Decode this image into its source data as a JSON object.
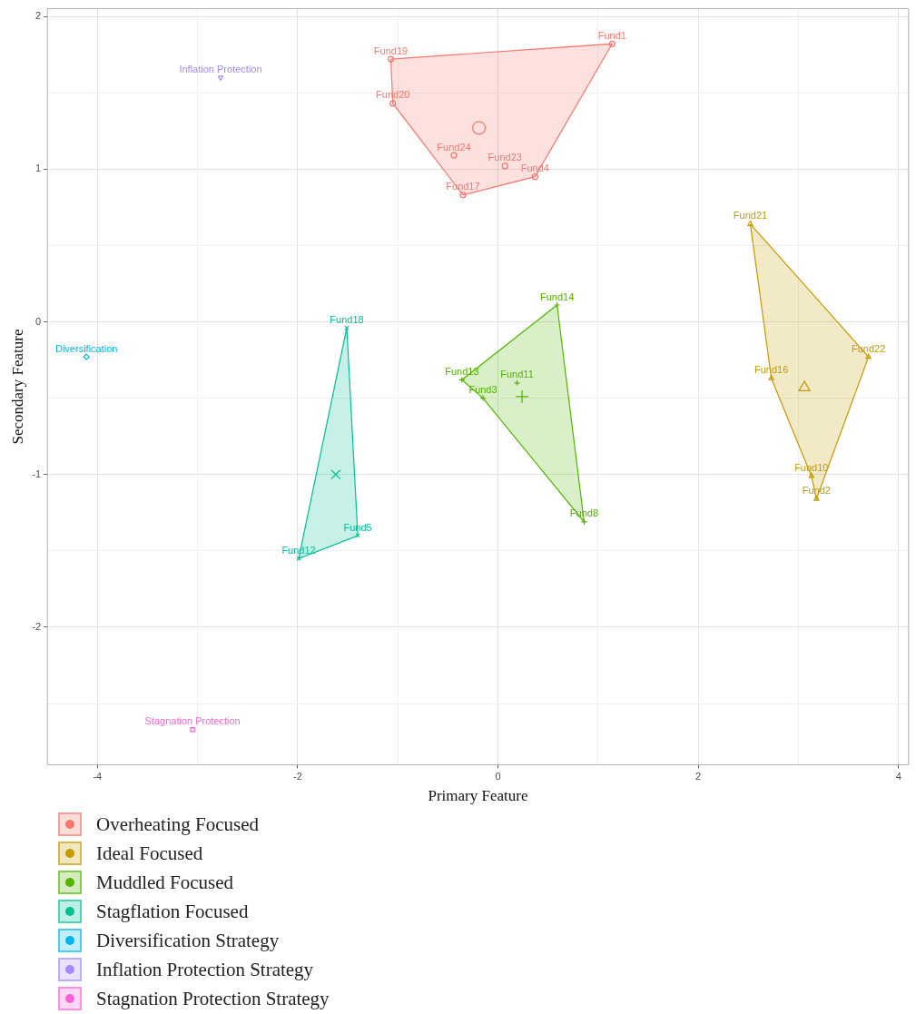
{
  "chart_data": {
    "type": "scatter",
    "xlabel": "Primary Feature",
    "ylabel": "Secondary Feature",
    "xlim": [
      -4.5,
      4.1
    ],
    "ylim": [
      -2.9,
      2.05
    ],
    "xticks": [
      -4,
      {
        "value": -3,
        "label": null
      },
      -2,
      {
        "value": -1,
        "label": null
      },
      0,
      {
        "value": 1,
        "label": null
      },
      2,
      {
        "value": 3,
        "label": null
      },
      4
    ],
    "yticks": [
      {
        "value": -2.5,
        "label": null
      },
      -2,
      {
        "value": -1.5,
        "label": null
      },
      -1,
      {
        "value": -0.5,
        "label": null
      },
      0,
      {
        "value": 0.5,
        "label": null
      },
      1,
      {
        "value": 1.5,
        "label": null
      },
      2
    ],
    "grid": true,
    "legend": "bottom left",
    "series": [
      {
        "name": "Overheating Focused",
        "color": "#f8766d",
        "marker": "circle",
        "x": [
          1.14,
          -1.07,
          -1.05,
          -0.44,
          0.07,
          0.37,
          -0.35
        ],
        "values": [
          1.82,
          1.72,
          1.43,
          1.09,
          1.02,
          0.95,
          0.83
        ],
        "value_labels": [
          "Fund1",
          "Fund19",
          "Fund20",
          "Fund24",
          "Fund23",
          "Fund4",
          "Fund17"
        ]
      },
      {
        "name": "Ideal Focused",
        "color": "#c49a00",
        "marker": "triangle",
        "x": [
          2.52,
          3.7,
          2.73,
          3.13,
          3.18
        ],
        "values": [
          0.64,
          -0.23,
          -0.37,
          -1.01,
          -1.16
        ],
        "value_labels": [
          "Fund21",
          "Fund22",
          "Fund16",
          "Fund10",
          "Fund2"
        ]
      },
      {
        "name": "Muddled Focused",
        "color": "#53b400",
        "marker": "plus",
        "x": [
          0.59,
          -0.36,
          -0.15,
          0.19,
          0.86
        ],
        "values": [
          0.11,
          -0.38,
          -0.5,
          -0.4,
          -1.31
        ],
        "value_labels": [
          "Fund14",
          "Fund13",
          "Fund3",
          "Fund11",
          "Fund8"
        ]
      },
      {
        "name": "Stagflation Focused",
        "color": "#00c094",
        "marker": "cross",
        "x": [
          -1.51,
          -1.4,
          -1.99
        ],
        "values": [
          -0.04,
          -1.4,
          -1.55
        ],
        "value_labels": [
          "Fund18",
          "Fund5",
          "Fund12"
        ]
      },
      {
        "name": "Diversification Strategy",
        "color": "#00b6eb",
        "marker": "diamond",
        "x": [
          -4.11
        ],
        "values": [
          -0.23
        ],
        "value_labels": [
          "Diversification"
        ]
      },
      {
        "name": "Inflation Protection Strategy",
        "color": "#a58aff",
        "marker": "triangle_down",
        "x": [
          -2.77
        ],
        "values": [
          1.6
        ],
        "value_labels": [
          "Inflation Protection"
        ]
      },
      {
        "name": "Stagnation Protection Strategy",
        "color": "#fb61d7",
        "marker": "square",
        "x": [
          -3.05
        ],
        "values": [
          -2.67
        ],
        "value_labels": [
          "Stagnation Protection"
        ]
      },
      {
        "type": "area",
        "color": "#f8766d",
        "x": [
          -1.07,
          1.14,
          0.37,
          -0.35,
          -1.05,
          -1.07
        ],
        "values": [
          1.72,
          1.82,
          0.95,
          0.83,
          1.43,
          1.72
        ]
      },
      {
        "type": "area",
        "color": "#c49a00",
        "x": [
          2.52,
          3.7,
          3.18,
          3.13,
          2.73,
          2.52
        ],
        "values": [
          0.64,
          -0.23,
          -1.16,
          -1.01,
          -0.37,
          0.64
        ]
      },
      {
        "type": "area",
        "color": "#53b400",
        "x": [
          0.59,
          0.86,
          -0.15,
          -0.36,
          0.59
        ],
        "values": [
          0.11,
          -1.31,
          -0.5,
          -0.38,
          0.11
        ]
      },
      {
        "type": "area",
        "color": "#00c094",
        "x": [
          -1.51,
          -1.4,
          -1.99,
          -1.51
        ],
        "values": [
          -0.04,
          -1.4,
          -1.55,
          -0.04
        ]
      },
      {
        "color": "#f8766d",
        "marker": "circle",
        "x": [
          -0.19
        ],
        "values": [
          1.27
        ]
      },
      {
        "color": "#c49a00",
        "marker": "triangle",
        "x": [
          3.06
        ],
        "values": [
          -0.43
        ]
      },
      {
        "color": "#53b400",
        "marker": "plus",
        "x": [
          0.24
        ],
        "values": [
          -0.49
        ]
      },
      {
        "color": "#00c094",
        "marker": "cross",
        "x": [
          -1.62
        ],
        "values": [
          -1.0
        ]
      }
    ]
  }
}
